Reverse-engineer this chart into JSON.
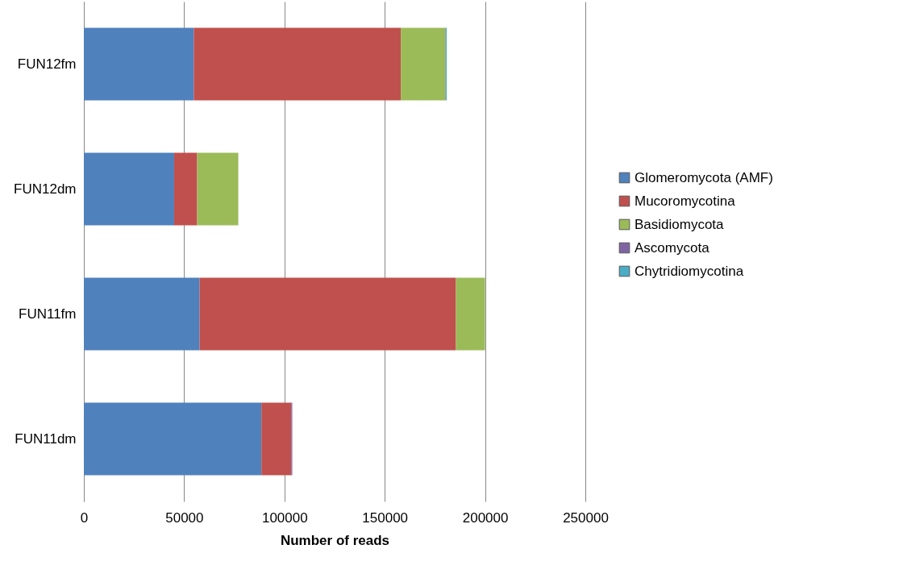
{
  "chart_data": {
    "type": "bar",
    "orientation": "horizontal",
    "stacked": true,
    "xlabel": "Number of reads",
    "categories": [
      "FUN12fm",
      "FUN12dm",
      "FUN11fm",
      "FUN11dm"
    ],
    "series": [
      {
        "name": "Glomeromycota (AMF)",
        "color": "#4f81bd",
        "values": [
          54800,
          45000,
          57700,
          88500
        ]
      },
      {
        "name": "Mucoromycotina",
        "color": "#c0504d",
        "values": [
          103200,
          11500,
          127800,
          14900
        ]
      },
      {
        "name": "Basidiomycota",
        "color": "#9bbb59",
        "values": [
          22200,
          20500,
          14500,
          0
        ]
      },
      {
        "name": "Ascomycota",
        "color": "#8064a2",
        "values": [
          200,
          0,
          0,
          500
        ]
      },
      {
        "name": "Chytridiomycotina",
        "color": "#4bacc6",
        "values": [
          500,
          0,
          0,
          0
        ]
      }
    ],
    "xlim": [
      0,
      250000
    ],
    "xticks": [
      0,
      50000,
      100000,
      150000,
      200000,
      250000
    ],
    "grid": "x",
    "legend": "right"
  }
}
